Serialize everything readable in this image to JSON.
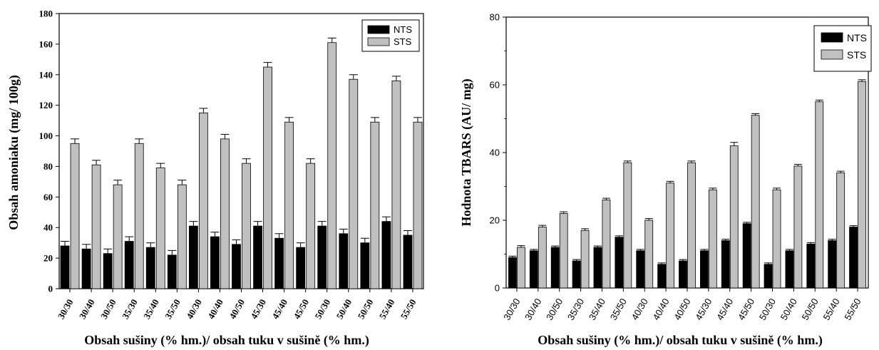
{
  "chart_data": [
    {
      "type": "bar",
      "ylabel": "Obsah amoniaku (mg/ 100g)",
      "xlabel": "Obsah sušiny (% hm.)/ obsah tuku v sušině (% hm.)",
      "ylim": [
        0,
        180
      ],
      "yticks": [
        "0",
        "20",
        "40",
        "60",
        "80",
        "100",
        "120",
        "140",
        "160",
        "180"
      ],
      "ytick_values": [
        0,
        20,
        40,
        60,
        80,
        100,
        120,
        140,
        160,
        180
      ],
      "categories": [
        "30/30",
        "30/40",
        "30/50",
        "35/30",
        "35/40",
        "35/50",
        "40/30",
        "40/40",
        "40/50",
        "45/30",
        "45/40",
        "45/50",
        "50/30",
        "50/40",
        "50/50",
        "55/40",
        "55/50"
      ],
      "legend_position": "top-right",
      "series": [
        {
          "name": "NTS",
          "color": "#000000",
          "values": [
            28,
            26,
            23,
            31,
            27,
            22,
            41,
            34,
            29,
            41,
            33,
            27,
            41,
            36,
            30,
            44,
            35
          ],
          "errors": [
            3,
            3,
            3,
            3,
            3,
            3,
            3,
            3,
            3,
            3,
            3,
            3,
            3,
            3,
            3,
            3,
            3
          ]
        },
        {
          "name": "STS",
          "color": "#c0c0c0",
          "values": [
            95,
            81,
            68,
            95,
            79,
            68,
            115,
            98,
            82,
            145,
            109,
            82,
            161,
            137,
            109,
            136,
            109
          ],
          "errors": [
            3,
            3,
            3,
            3,
            3,
            3,
            3,
            3,
            3,
            3,
            3,
            3,
            3,
            3,
            3,
            3,
            3
          ]
        }
      ]
    },
    {
      "type": "bar",
      "ylabel": "Hodnota TBARS (AU/ mg)",
      "xlabel": "Obsah sušiny (% hm.)/ obsah tuku v sušině (% hm.)",
      "ylim": [
        0,
        80
      ],
      "yticks": [
        "0",
        "20",
        "40",
        "60",
        "80"
      ],
      "ytick_values": [
        0,
        20,
        40,
        60,
        80
      ],
      "categories": [
        "30/30",
        "30/40",
        "30/50",
        "35/30",
        "35/40",
        "35/50",
        "40/30",
        "40/40",
        "40/50",
        "45/30",
        "45/40",
        "45/50",
        "50/30",
        "50/40",
        "50/50",
        "55/40",
        "55/50"
      ],
      "legend_position": "top-right",
      "series": [
        {
          "name": "NTS",
          "color": "#000000",
          "values": [
            9,
            11,
            12,
            8,
            12,
            15,
            11,
            7,
            8,
            11,
            14,
            19,
            7,
            11,
            13,
            14,
            18
          ],
          "errors": [
            0.4,
            0.4,
            0.4,
            0.4,
            0.4,
            0.4,
            0.4,
            0.4,
            0.4,
            0.4,
            0.4,
            0.4,
            0.4,
            0.4,
            0.4,
            0.4,
            0.4
          ]
        },
        {
          "name": "STS",
          "color": "#c0c0c0",
          "values": [
            12,
            18,
            22,
            17,
            26,
            37,
            20,
            31,
            37,
            29,
            42,
            51,
            29,
            36,
            55,
            34,
            61
          ],
          "errors": [
            0.5,
            0.5,
            0.5,
            0.5,
            0.5,
            0.5,
            0.5,
            0.5,
            0.5,
            0.5,
            1,
            0.5,
            0.5,
            0.5,
            0.5,
            0.5,
            0.5
          ]
        }
      ]
    }
  ]
}
